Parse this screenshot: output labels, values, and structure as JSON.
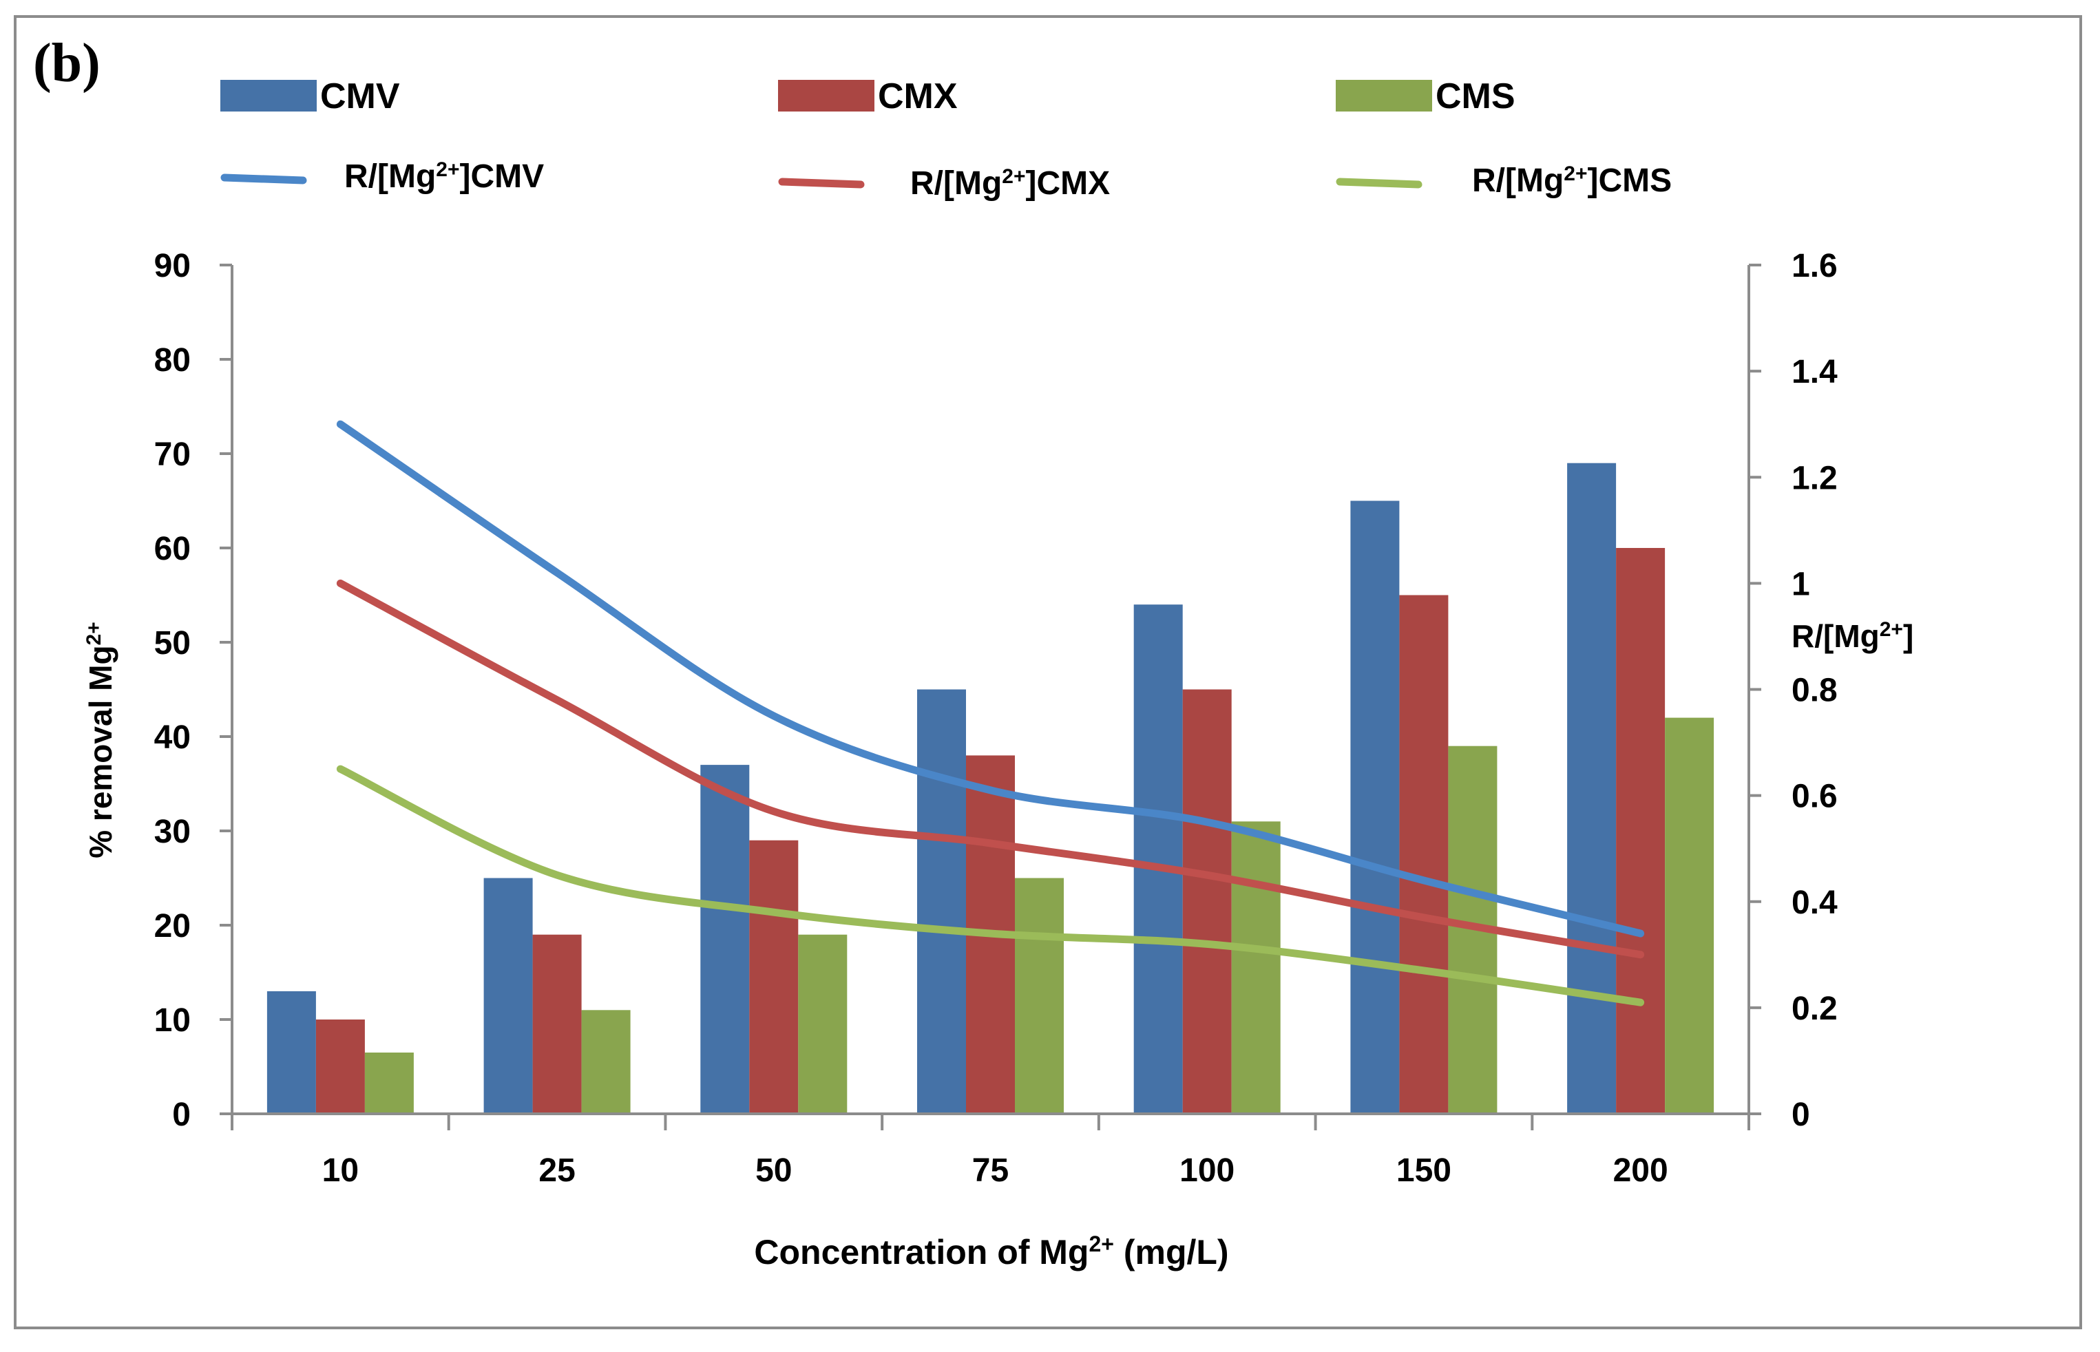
{
  "chart_data": {
    "type": "bar",
    "panel_label": "(b)",
    "xlabel": {
      "main": "Concentration of Mg",
      "sup": "2+",
      "tail": " (mg/L)"
    },
    "ylabel_left": {
      "main": "% removal Mg",
      "sup": "2+"
    },
    "ylabel_right": {
      "pre": "R/[Mg",
      "sup": "2+",
      "post": "]"
    },
    "categories": [
      "10",
      "25",
      "50",
      "75",
      "100",
      "150",
      "200"
    ],
    "ylim_left": [
      0,
      90
    ],
    "yticks_left": [
      "0",
      "10",
      "20",
      "30",
      "40",
      "50",
      "60",
      "70",
      "80",
      "90"
    ],
    "ylim_right": [
      0,
      1.6
    ],
    "yticks_right": [
      "0",
      "0.2",
      "0.4",
      "0.6",
      "0.8",
      "1",
      "1.2",
      "1.4",
      "1.6"
    ],
    "grid": false,
    "legend_position": "top",
    "bar_series": [
      {
        "name": "CMV",
        "color": "#4572A7",
        "values": [
          13,
          25,
          37,
          45,
          54,
          65,
          69
        ]
      },
      {
        "name": "CMX",
        "color": "#AA4643",
        "values": [
          10,
          19,
          29,
          38,
          45,
          55,
          60
        ]
      },
      {
        "name": "CMS",
        "color": "#89A54E",
        "values": [
          6.5,
          11,
          19,
          25,
          31,
          39,
          42
        ]
      }
    ],
    "line_series": [
      {
        "name_pre": "R/[Mg",
        "name_sup": "2+",
        "name_post": "]CMV",
        "color": "#4A86C8",
        "axis": "right",
        "values": [
          1.3,
          1.02,
          0.75,
          0.61,
          0.55,
          0.44,
          0.34
        ]
      },
      {
        "name_pre": "R/[Mg",
        "name_sup": "2+",
        "name_post": "]CMX",
        "color": "#C0504D",
        "axis": "right",
        "values": [
          1.0,
          0.78,
          0.57,
          0.51,
          0.45,
          0.37,
          0.3
        ]
      },
      {
        "name_pre": "R/[Mg",
        "name_sup": "2+",
        "name_post": "]CMS",
        "color": "#9BBB59",
        "axis": "right",
        "values": [
          0.65,
          0.45,
          0.38,
          0.34,
          0.32,
          0.27,
          0.21
        ]
      }
    ]
  }
}
